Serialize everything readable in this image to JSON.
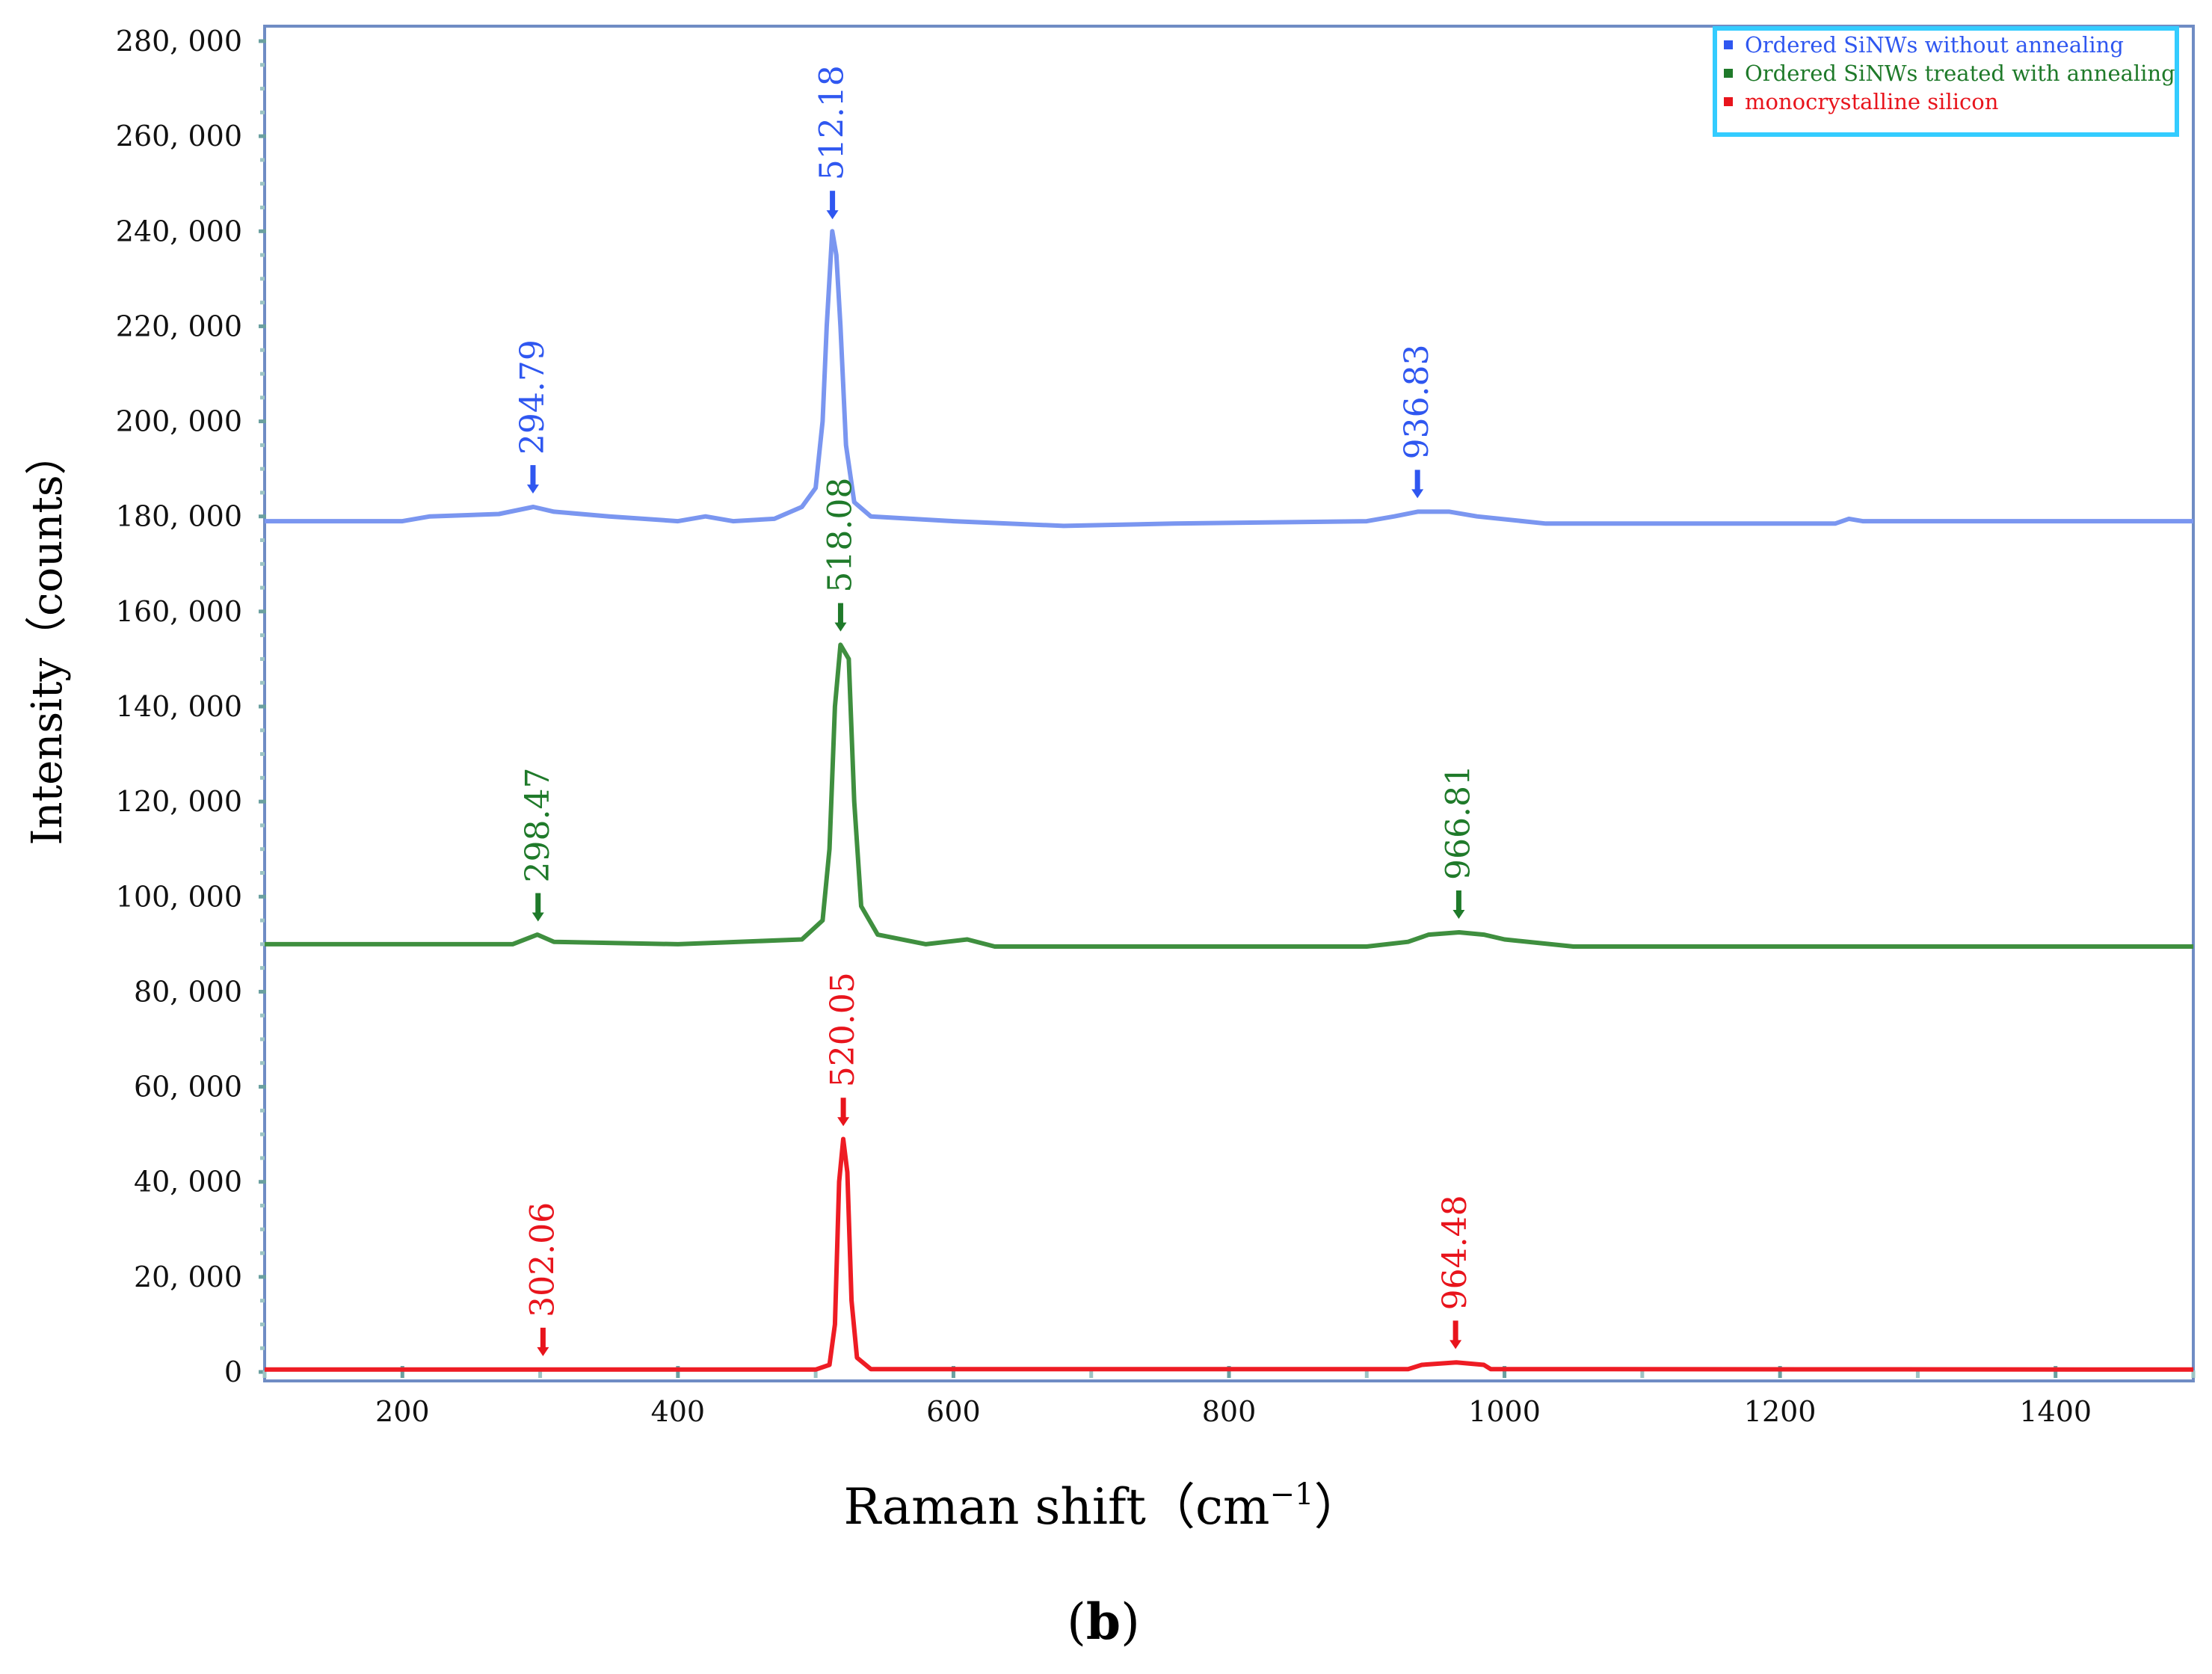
{
  "chart_data": {
    "type": "line",
    "xlabel": "Raman shift（cm",
    "xlabel_sup": "−1",
    "xlabel_close": "）",
    "ylabel": "Intensity（counts）",
    "xlim": [
      100,
      1500
    ],
    "ylim": [
      0,
      280000
    ],
    "x_ticks": [
      200,
      400,
      600,
      800,
      1000,
      1200,
      1400
    ],
    "x_tick_labels": [
      "200",
      "400",
      "600",
      "800",
      "1000",
      "1200",
      "1400"
    ],
    "y_ticks": [
      0,
      20000,
      40000,
      60000,
      80000,
      100000,
      120000,
      140000,
      160000,
      180000,
      200000,
      220000,
      240000,
      260000,
      280000
    ],
    "y_tick_labels": [
      "0",
      "20, 000",
      "40, 000",
      "60, 000",
      "80, 000",
      "100, 000",
      "120, 000",
      "140, 000",
      "160, 000",
      "180, 000",
      "200, 000",
      "220, 000",
      "240, 000",
      "260, 000",
      "280, 000"
    ],
    "legend_position": "top-right",
    "panel_label": "b",
    "series": [
      {
        "name": "Ordered SiNWs without annealing",
        "color": "#2f57f0",
        "line_color": "#7a96f0",
        "points": [
          [
            100,
            179000
          ],
          [
            200,
            179000
          ],
          [
            220,
            180000
          ],
          [
            270,
            180500
          ],
          [
            295,
            182000
          ],
          [
            310,
            181000
          ],
          [
            350,
            180000
          ],
          [
            400,
            179000
          ],
          [
            420,
            180000
          ],
          [
            440,
            179000
          ],
          [
            470,
            179500
          ],
          [
            490,
            182000
          ],
          [
            500,
            186000
          ],
          [
            505,
            200000
          ],
          [
            508,
            220000
          ],
          [
            512,
            240000
          ],
          [
            515,
            235000
          ],
          [
            518,
            220000
          ],
          [
            522,
            195000
          ],
          [
            528,
            183000
          ],
          [
            540,
            180000
          ],
          [
            600,
            179000
          ],
          [
            680,
            178000
          ],
          [
            760,
            178500
          ],
          [
            900,
            179000
          ],
          [
            920,
            180000
          ],
          [
            937,
            181000
          ],
          [
            960,
            181000
          ],
          [
            980,
            180000
          ],
          [
            1030,
            178500
          ],
          [
            1240,
            178500
          ],
          [
            1250,
            179500
          ],
          [
            1260,
            179000
          ],
          [
            1500,
            179000
          ]
        ],
        "peaks": [
          {
            "x": 294.79,
            "label": "294.79"
          },
          {
            "x": 512.18,
            "label": "512.18"
          },
          {
            "x": 936.83,
            "label": "936.83"
          }
        ]
      },
      {
        "name": "Ordered SiNWs  treated with annealing",
        "color": "#1f7a2a",
        "line_color": "#3f8f3f",
        "points": [
          [
            100,
            90000
          ],
          [
            280,
            90000
          ],
          [
            298,
            92000
          ],
          [
            310,
            90500
          ],
          [
            400,
            90000
          ],
          [
            490,
            91000
          ],
          [
            505,
            95000
          ],
          [
            510,
            110000
          ],
          [
            514,
            140000
          ],
          [
            518,
            153000
          ],
          [
            524,
            150000
          ],
          [
            528,
            120000
          ],
          [
            533,
            98000
          ],
          [
            545,
            92000
          ],
          [
            580,
            90000
          ],
          [
            610,
            91000
          ],
          [
            630,
            89500
          ],
          [
            900,
            89500
          ],
          [
            930,
            90500
          ],
          [
            945,
            92000
          ],
          [
            967,
            92500
          ],
          [
            985,
            92000
          ],
          [
            1000,
            91000
          ],
          [
            1050,
            89500
          ],
          [
            1500,
            89500
          ]
        ],
        "peaks": [
          {
            "x": 298.47,
            "label": "298.47"
          },
          {
            "x": 518.08,
            "label": "518.08"
          },
          {
            "x": 966.81,
            "label": "966.81"
          }
        ]
      },
      {
        "name": "monocrystalline silicon",
        "color": "#e8141c",
        "line_color": "#ee1c24",
        "points": [
          [
            100,
            500
          ],
          [
            500,
            500
          ],
          [
            510,
            1500
          ],
          [
            514,
            10000
          ],
          [
            517,
            40000
          ],
          [
            520,
            49000
          ],
          [
            523,
            42000
          ],
          [
            526,
            15000
          ],
          [
            530,
            3000
          ],
          [
            540,
            600
          ],
          [
            930,
            600
          ],
          [
            940,
            1500
          ],
          [
            965,
            2000
          ],
          [
            985,
            1500
          ],
          [
            990,
            600
          ],
          [
            1500,
            500
          ]
        ],
        "peaks": [
          {
            "x": 302.06,
            "label": "302.06"
          },
          {
            "x": 520.05,
            "label": "520.05"
          },
          {
            "x": 964.48,
            "label": "964.48"
          }
        ]
      }
    ]
  }
}
